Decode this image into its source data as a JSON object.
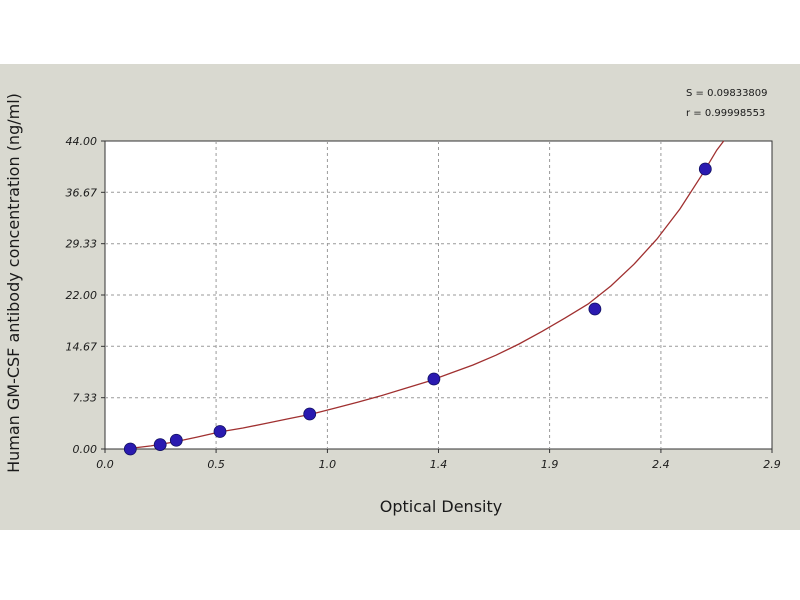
{
  "chart_data": {
    "type": "scatter",
    "xlabel": "Optical Density",
    "ylabel": "Human GM-CSF antibody concentration (ng/ml)",
    "xlim": [
      0.0,
      2.9
    ],
    "ylim": [
      0.0,
      44.0
    ],
    "x_ticks": [
      "0.0",
      "0.5",
      "1.0",
      "1.4",
      "1.9",
      "2.4",
      "2.9"
    ],
    "x_tick_values": [
      0.0,
      0.483,
      0.967,
      1.45,
      1.933,
      2.417,
      2.9
    ],
    "y_ticks": [
      "0.00",
      "7.33",
      "14.67",
      "22.00",
      "29.33",
      "36.67",
      "44.00"
    ],
    "y_tick_values": [
      0.0,
      7.33,
      14.67,
      22.0,
      29.33,
      36.67,
      44.0
    ],
    "grid": true,
    "stats": [
      "S = 0.09833809",
      "r = 0.99998553"
    ],
    "series": [
      {
        "points": [
          {
            "x": 0.11,
            "y": 0.0
          },
          {
            "x": 0.24,
            "y": 0.63
          },
          {
            "x": 0.31,
            "y": 1.25
          },
          {
            "x": 0.5,
            "y": 2.5
          },
          {
            "x": 0.89,
            "y": 5.0
          },
          {
            "x": 1.43,
            "y": 10.0
          },
          {
            "x": 2.13,
            "y": 20.0
          },
          {
            "x": 2.61,
            "y": 40.0
          }
        ],
        "color": "#2a1ab0"
      }
    ],
    "fit_curve": {
      "color": "#a03030",
      "points": [
        [
          0.1,
          0.05
        ],
        [
          0.2,
          0.45
        ],
        [
          0.3,
          1.0
        ],
        [
          0.4,
          1.7
        ],
        [
          0.5,
          2.45
        ],
        [
          0.6,
          3.0
        ],
        [
          0.7,
          3.65
        ],
        [
          0.8,
          4.35
        ],
        [
          0.9,
          5.0
        ],
        [
          1.0,
          5.85
        ],
        [
          1.1,
          6.7
        ],
        [
          1.2,
          7.6
        ],
        [
          1.3,
          8.6
        ],
        [
          1.4,
          9.6
        ],
        [
          1.5,
          10.8
        ],
        [
          1.6,
          12.0
        ],
        [
          1.7,
          13.4
        ],
        [
          1.8,
          15.0
        ],
        [
          1.9,
          16.8
        ],
        [
          2.0,
          18.7
        ],
        [
          2.1,
          20.7
        ],
        [
          2.2,
          23.3
        ],
        [
          2.3,
          26.4
        ],
        [
          2.4,
          30.0
        ],
        [
          2.5,
          34.3
        ],
        [
          2.6,
          39.4
        ],
        [
          2.66,
          42.7
        ],
        [
          2.69,
          44.0
        ]
      ]
    }
  }
}
